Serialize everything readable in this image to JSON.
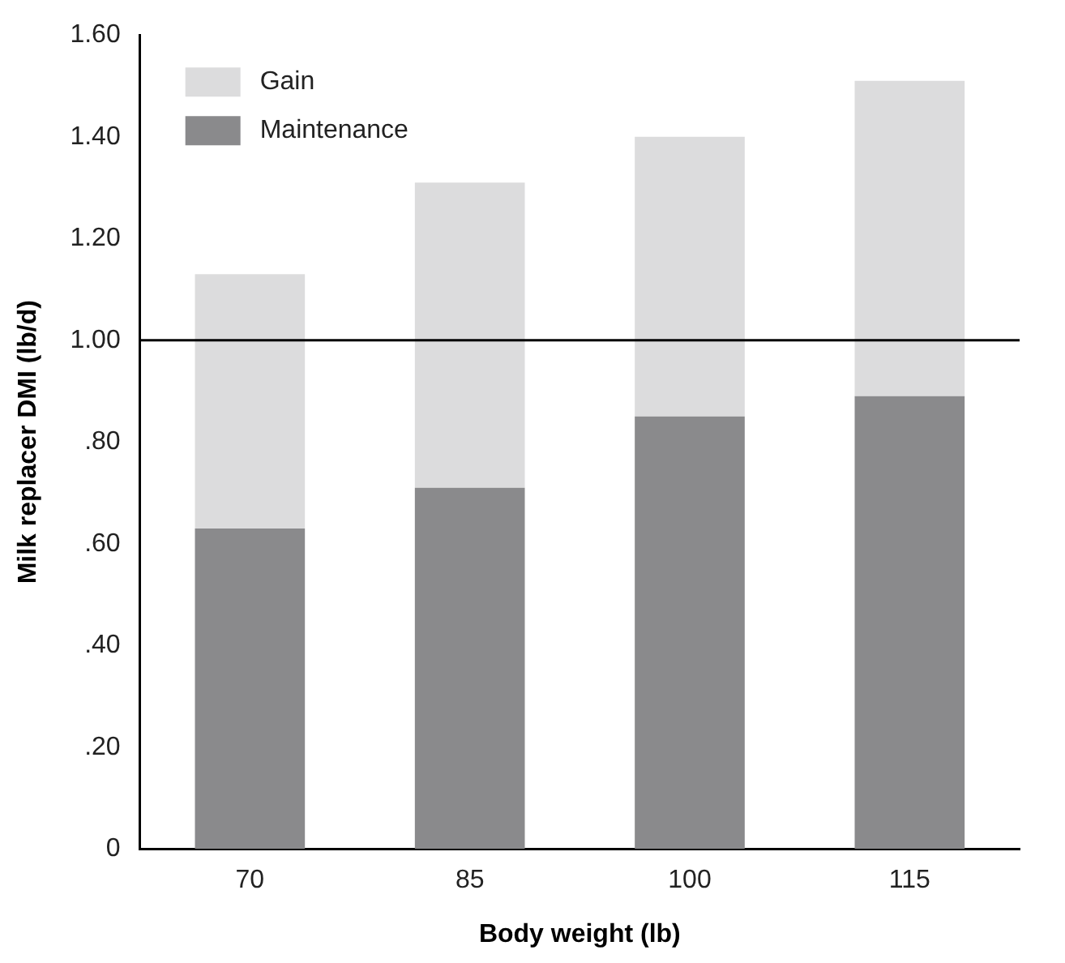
{
  "chart_data": {
    "type": "bar",
    "xlabel": "Body weight (lb)",
    "ylabel": "Milk replacer DMI (lb/d)",
    "categories": [
      "70",
      "85",
      "100",
      "115"
    ],
    "stacked": true,
    "series": [
      {
        "name": "Maintenance",
        "color": "#8a8a8c",
        "values": [
          0.63,
          0.71,
          0.85,
          0.89
        ]
      },
      {
        "name": "Gain",
        "color": "#dcdcdd",
        "values": [
          0.5,
          0.6,
          0.55,
          0.62
        ]
      }
    ],
    "ylim": [
      0,
      1.6
    ],
    "yticks": [
      {
        "value": 0,
        "label": "0"
      },
      {
        "value": 0.2,
        "label": ".20"
      },
      {
        "value": 0.4,
        "label": ".40"
      },
      {
        "value": 0.6,
        "label": ".60"
      },
      {
        "value": 0.8,
        "label": ".80"
      },
      {
        "value": 1,
        "label": "1.00"
      },
      {
        "value": 1.2,
        "label": "1.20"
      },
      {
        "value": 1.4,
        "label": "1.40"
      },
      {
        "value": 1.6,
        "label": "1.60"
      }
    ],
    "ref_lines": [
      {
        "axis": "y",
        "value": 1,
        "color": "#000000"
      }
    ],
    "grid": false,
    "legend": "top left"
  }
}
